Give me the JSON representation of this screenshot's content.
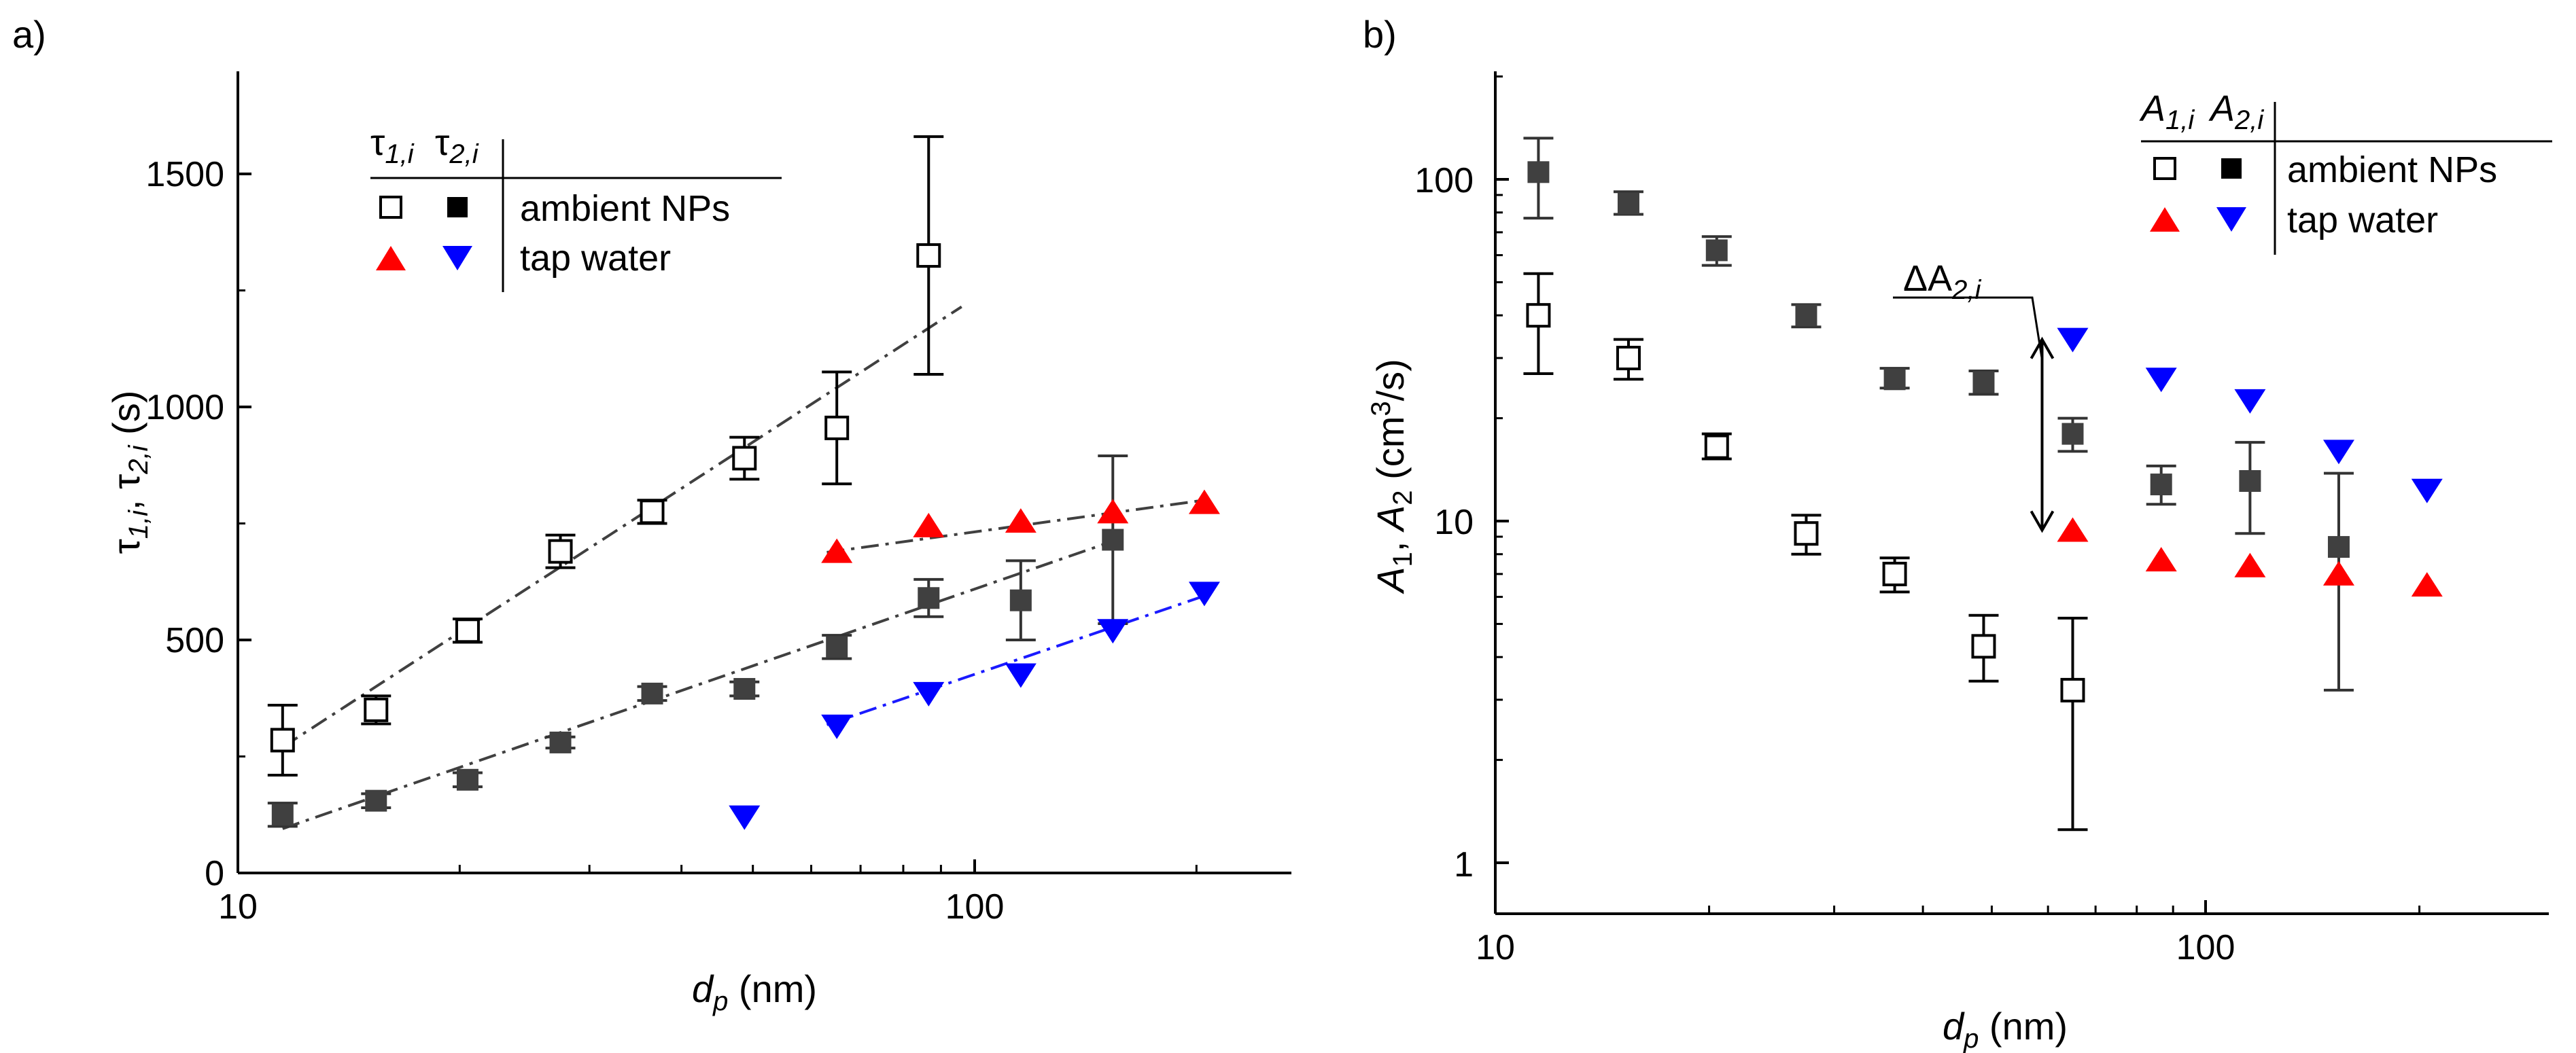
{
  "colors": {
    "open": "#000000",
    "filled": "#404040",
    "tap_tau1": "#ff0000",
    "tap_tau2": "#0000ff",
    "fit_gray": "#404040",
    "fit_blue": "#1a1aff"
  },
  "chart_data": [
    {
      "panel_label": "a)",
      "type": "scatter",
      "xscale": "log",
      "xlim": [
        10,
        270
      ],
      "ylim": [
        0,
        1720
      ],
      "xticks": [
        10,
        100
      ],
      "xtick_labels": [
        "10",
        "100"
      ],
      "yticks": [
        0,
        500,
        1000,
        1500
      ],
      "ytick_labels": [
        "0",
        "500",
        "1000",
        "1500"
      ],
      "xlabel": "d",
      "xlabel_sub": "p",
      "xlabel_unit": " (nm)",
      "ylabel": {
        "t1": "τ",
        "t1_sub": "1,i",
        "sep": ", ",
        "t2": "τ",
        "t2_sub": "2,i",
        "unit": " (s)"
      },
      "legend": {
        "position": "upper-left",
        "header_1": "τ",
        "header_1_sub": "1,i",
        "header_2": "τ",
        "header_2_sub": "2,i",
        "rows": [
          "ambient NPs",
          "tap water"
        ]
      },
      "series": [
        {
          "name": "τ1,i ambient NPs",
          "marker": "open-square",
          "color_key": "open",
          "x": [
            11.5,
            15.4,
            20.5,
            27.4,
            36.5,
            48.7,
            65,
            86.6
          ],
          "y": [
            285,
            350,
            520,
            690,
            775,
            890,
            955,
            1325
          ],
          "err": [
            75,
            30,
            25,
            35,
            25,
            45,
            120,
            255
          ]
        },
        {
          "name": "τ2,i ambient NPs",
          "marker": "filled-square",
          "color_key": "filled",
          "x": [
            11.5,
            15.4,
            20.5,
            27.4,
            36.5,
            48.7,
            65,
            86.6,
            115.5,
            154
          ],
          "y": [
            125,
            155,
            200,
            280,
            385,
            395,
            485,
            590,
            585,
            715
          ],
          "err": [
            25,
            15,
            15,
            12,
            15,
            15,
            25,
            40,
            85,
            180
          ]
        },
        {
          "name": "τ1,i tap water",
          "marker": "triangle-up",
          "color_key": "tap_tau1",
          "x": [
            65,
            86.6,
            115.5,
            154,
            205
          ],
          "y": [
            690,
            745,
            755,
            775,
            795
          ]
        },
        {
          "name": "τ2,i tap water",
          "marker": "triangle-down",
          "color_key": "tap_tau2",
          "x": [
            48.7,
            65,
            86.6,
            115.5,
            154,
            205
          ],
          "y": [
            120,
            315,
            385,
            425,
            520,
            600
          ]
        }
      ],
      "fits": [
        {
          "color_key": "fit_gray",
          "x": [
            11.5,
            96
          ],
          "y": [
            270,
            1215
          ]
        },
        {
          "color_key": "fit_gray",
          "x": [
            11.5,
            158
          ],
          "y": [
            95,
            718
          ]
        },
        {
          "color_key": "fit_gray",
          "x": [
            63,
            205
          ],
          "y": [
            688,
            800
          ]
        },
        {
          "color_key": "fit_blue",
          "x": [
            63,
            208
          ],
          "y": [
            318,
            598
          ]
        }
      ]
    },
    {
      "panel_label": "b)",
      "type": "scatter",
      "xscale": "log",
      "yscale": "log",
      "xlim": [
        10,
        270
      ],
      "ylim": [
        0.92,
        210
      ],
      "xticks": [
        10,
        100
      ],
      "xtick_labels": [
        "10",
        "100"
      ],
      "yticks": [
        1,
        10,
        100
      ],
      "ytick_labels": [
        "1",
        "10",
        "100"
      ],
      "xlabel": "d",
      "xlabel_sub": "p",
      "xlabel_unit": " (nm)",
      "ylabel": {
        "a1": "A",
        "a1_sub": "1",
        "sep": ", ",
        "a2": "A",
        "a2_sub": "2",
        "unit_pre": " (cm",
        "unit_sup": "3",
        "unit_post": "/s)"
      },
      "legend": {
        "position": "upper-right",
        "header_1": "A",
        "header_1_sub": "1,i",
        "header_2": "A",
        "header_2_sub": "2,i",
        "rows": [
          "ambient NPs",
          "tap water"
        ]
      },
      "annotation": {
        "text": "ΔA",
        "text_sub": "2,i",
        "x": 65,
        "y_top": 34,
        "y_bottom": 9.4
      },
      "series": [
        {
          "name": "A1,i ambient NPs",
          "marker": "open-square",
          "color_key": "open",
          "x": [
            11.5,
            15.4,
            20.5,
            27.4,
            36.5,
            48.7,
            65
          ],
          "y": [
            40,
            30,
            16.5,
            9.2,
            7.0,
            4.3,
            3.2
          ],
          "err_lo": [
            27,
            26,
            15.2,
            8.0,
            6.2,
            3.4,
            1.25
          ],
          "err_hi": [
            53,
            34,
            18,
            10.4,
            7.8,
            5.3,
            5.2
          ]
        },
        {
          "name": "A2,i ambient NPs",
          "marker": "filled-square",
          "color_key": "filled",
          "x": [
            11.5,
            15.4,
            20.5,
            27.4,
            36.5,
            48.7,
            65,
            86.6,
            115.5,
            154
          ],
          "y": [
            105,
            85,
            62,
            40,
            26,
            25.5,
            18,
            12.8,
            13.1,
            8.4
          ],
          "err_lo": [
            77,
            79,
            56,
            37,
            24.5,
            23.5,
            16,
            11.2,
            9.2,
            3.2
          ],
          "err_hi": [
            132,
            92,
            68,
            43,
            28,
            27.5,
            20,
            14.5,
            17,
            13.8
          ]
        },
        {
          "name": "A1,i tap water",
          "marker": "triangle-up",
          "color_key": "tap_tau1",
          "x": [
            65,
            86.6,
            115.5,
            154,
            205
          ],
          "y": [
            9.4,
            7.7,
            7.4,
            7.0,
            6.5
          ]
        },
        {
          "name": "A2,i tap water",
          "marker": "triangle-down",
          "color_key": "tap_tau2",
          "x": [
            65,
            86.6,
            115.5,
            154,
            205
          ],
          "y": [
            34,
            26,
            22.5,
            16,
            12.3
          ]
        }
      ]
    }
  ]
}
